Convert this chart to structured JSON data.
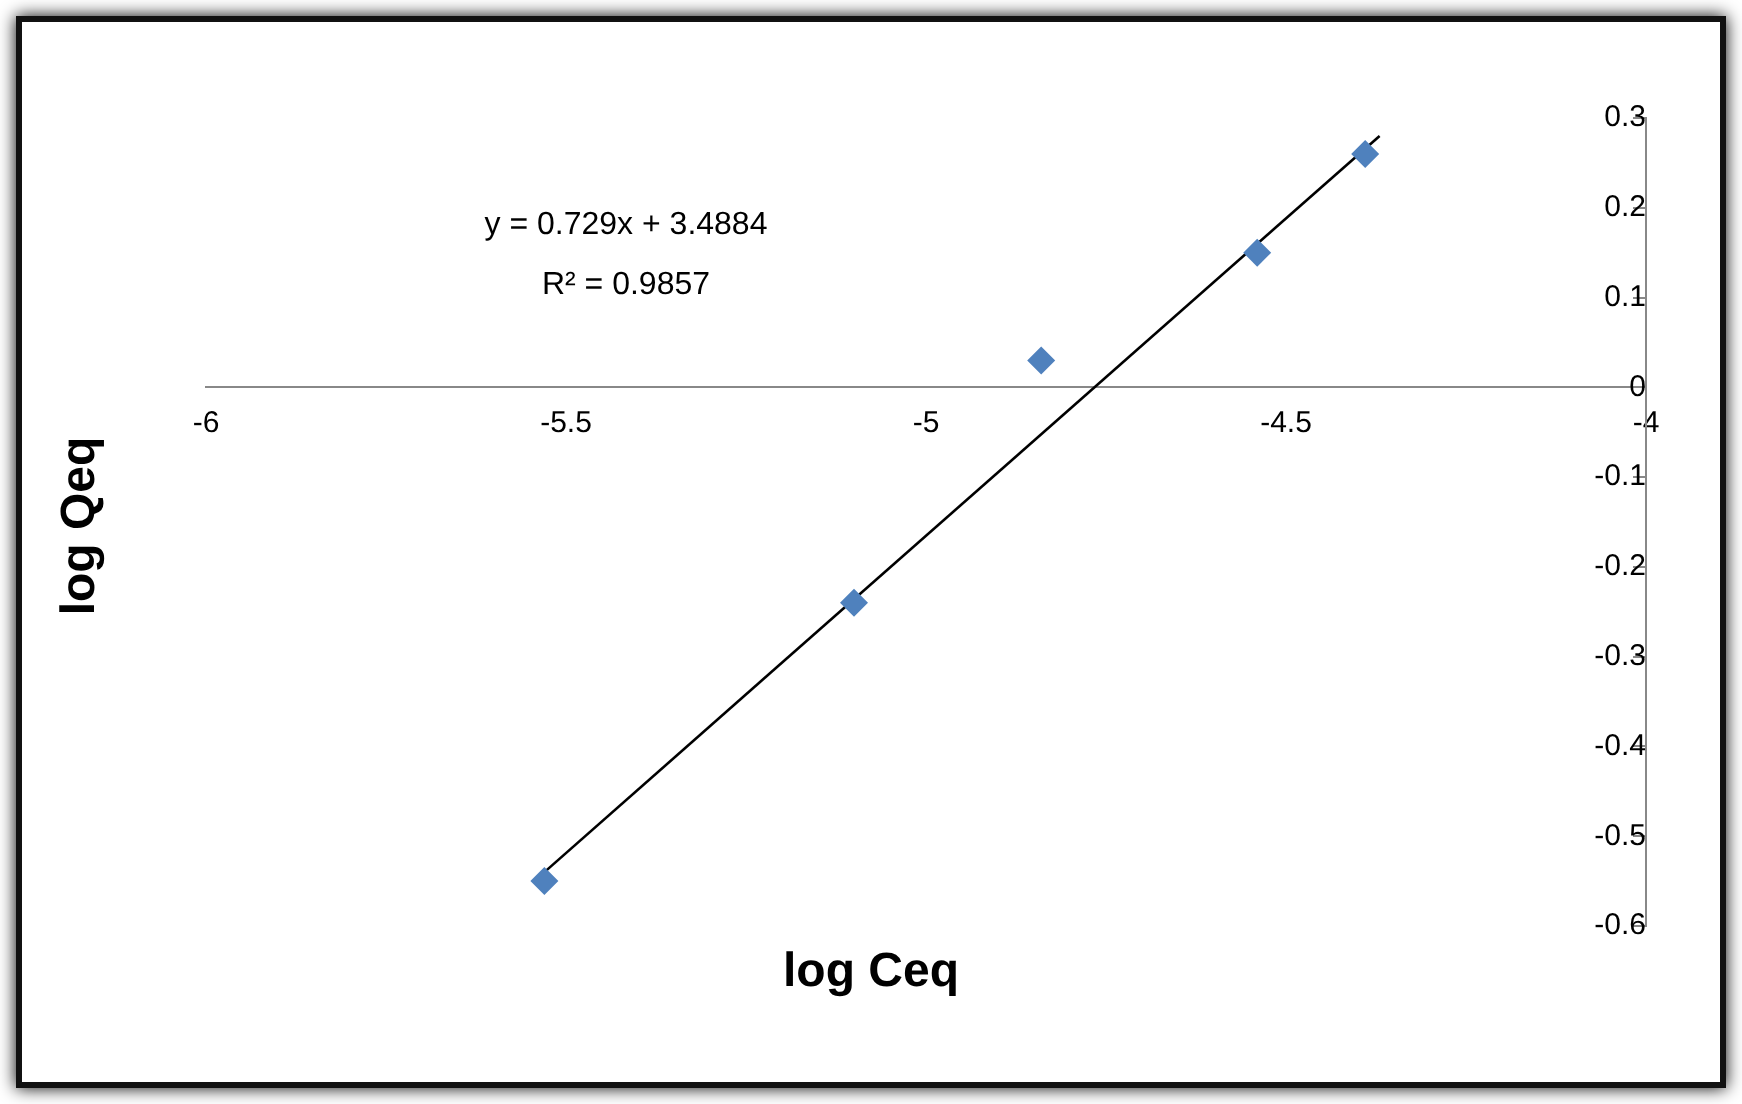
{
  "chart_data": {
    "type": "scatter",
    "xlabel": "log Ceq",
    "ylabel": "log Qeq",
    "annotations": [
      "y = 0.729x + 3.4884",
      "R² = 0.9857"
    ],
    "xlim": [
      -6,
      -4
    ],
    "xticks": [
      -6,
      -5.5,
      -5,
      -4.5,
      -4
    ],
    "ylim": [
      -0.6,
      0.3
    ],
    "yticks": [
      -0.6,
      -0.5,
      -0.4,
      -0.3,
      -0.2,
      -0.1,
      0,
      0.1,
      0.2,
      0.3
    ],
    "grid": false,
    "legend": false,
    "marker": "diamond",
    "series": [
      {
        "color": "#4f81bd",
        "x": [
          -5.53,
          -5.1,
          -4.84,
          -4.54,
          -4.39
        ],
        "values": [
          -0.55,
          -0.24,
          0.03,
          0.15,
          0.26
        ]
      },
      {
        "type": "line",
        "color": "#000000",
        "x": [
          -5.53,
          -4.37
        ],
        "values": [
          -0.54,
          0.28
        ],
        "marker": "none"
      }
    ]
  }
}
